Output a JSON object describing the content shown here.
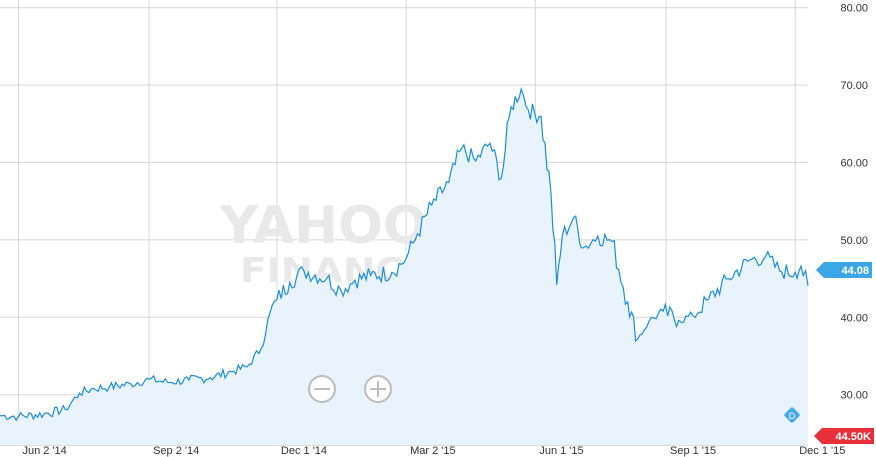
{
  "watermark": {
    "line1": "YAHOO!",
    "line2": "FINANCE"
  },
  "colors": {
    "price_line": "#1a8fd6",
    "price_fill": "#e8f3fc",
    "price_badge": "#3ba6e6",
    "volume_up": "#9fd6a6",
    "volume_down": "#f2a7b4",
    "volume_badge": "#e8303a",
    "grid": "#d7d7d7",
    "dividend": "#4aa8e6"
  },
  "controls": {
    "zoom_out_icon": "minus-circle-icon",
    "zoom_in_icon": "plus-circle-icon"
  },
  "chart_data": {
    "type": "area",
    "x_tick_labels": [
      "Jun 2 '14",
      "Sep 2 '14",
      "Dec 1 '14",
      "Mar 2 '15",
      "Jun 1 '15",
      "Sep 1 '15",
      "Dec 1 '15"
    ],
    "y_tick_labels": [
      "30.00",
      "40.00",
      "50.00",
      "60.00",
      "70.00",
      "80.00"
    ],
    "ylim": [
      23.5,
      81
    ],
    "grid": true,
    "x_range": [
      "2014-05-20",
      "2015-12-10"
    ],
    "series": [
      {
        "values": [
          [
            "2014-05-20",
            27.3
          ],
          [
            "2014-06-02",
            27.2
          ],
          [
            "2014-06-20",
            27.5
          ],
          [
            "2014-07-05",
            28.1
          ],
          [
            "2014-07-15",
            30.2
          ],
          [
            "2014-07-25",
            30.8
          ],
          [
            "2014-08-05",
            31.0
          ],
          [
            "2014-08-20",
            31.4
          ],
          [
            "2014-09-02",
            32.0
          ],
          [
            "2014-09-15",
            31.6
          ],
          [
            "2014-09-30",
            31.9
          ],
          [
            "2014-10-15",
            32.2
          ],
          [
            "2014-10-30",
            33.0
          ],
          [
            "2014-11-10",
            33.6
          ],
          [
            "2014-11-20",
            36.0
          ],
          [
            "2014-11-26",
            40.5
          ],
          [
            "2014-12-01",
            42.3
          ],
          [
            "2014-12-10",
            44.5
          ],
          [
            "2014-12-20",
            46.0
          ],
          [
            "2015-01-05",
            45.0
          ],
          [
            "2015-01-15",
            43.5
          ],
          [
            "2015-01-25",
            44.8
          ],
          [
            "2015-02-05",
            45.4
          ],
          [
            "2015-02-20",
            45.8
          ],
          [
            "2015-03-02",
            47.6
          ],
          [
            "2015-03-10",
            50.8
          ],
          [
            "2015-03-20",
            54.5
          ],
          [
            "2015-04-01",
            57.4
          ],
          [
            "2015-04-10",
            61.8
          ],
          [
            "2015-04-20",
            60.2
          ],
          [
            "2015-04-30",
            62.5
          ],
          [
            "2015-05-08",
            58.0
          ],
          [
            "2015-05-15",
            67.2
          ],
          [
            "2015-05-22",
            69.5
          ],
          [
            "2015-05-27",
            66.8
          ],
          [
            "2015-06-05",
            66.0
          ],
          [
            "2015-06-12",
            56.0
          ],
          [
            "2015-06-16",
            44.2
          ],
          [
            "2015-06-20",
            50.5
          ],
          [
            "2015-06-28",
            52.9
          ],
          [
            "2015-07-05",
            49.0
          ],
          [
            "2015-07-15",
            50.5
          ],
          [
            "2015-07-25",
            49.8
          ],
          [
            "2015-08-05",
            42.0
          ],
          [
            "2015-08-12",
            37.2
          ],
          [
            "2015-08-20",
            39.5
          ],
          [
            "2015-08-30",
            40.8
          ],
          [
            "2015-09-10",
            39.6
          ],
          [
            "2015-09-20",
            40.2
          ],
          [
            "2015-10-01",
            42.3
          ],
          [
            "2015-10-15",
            45.0
          ],
          [
            "2015-10-30",
            47.4
          ],
          [
            "2015-11-10",
            47.8
          ],
          [
            "2015-11-20",
            46.0
          ],
          [
            "2015-12-01",
            45.8
          ],
          [
            "2015-12-05",
            46.6
          ],
          [
            "2015-12-10",
            44.08
          ]
        ]
      }
    ],
    "current_price_label": "44.08",
    "volume_label": "44.50K",
    "dividend_marker": "D"
  }
}
